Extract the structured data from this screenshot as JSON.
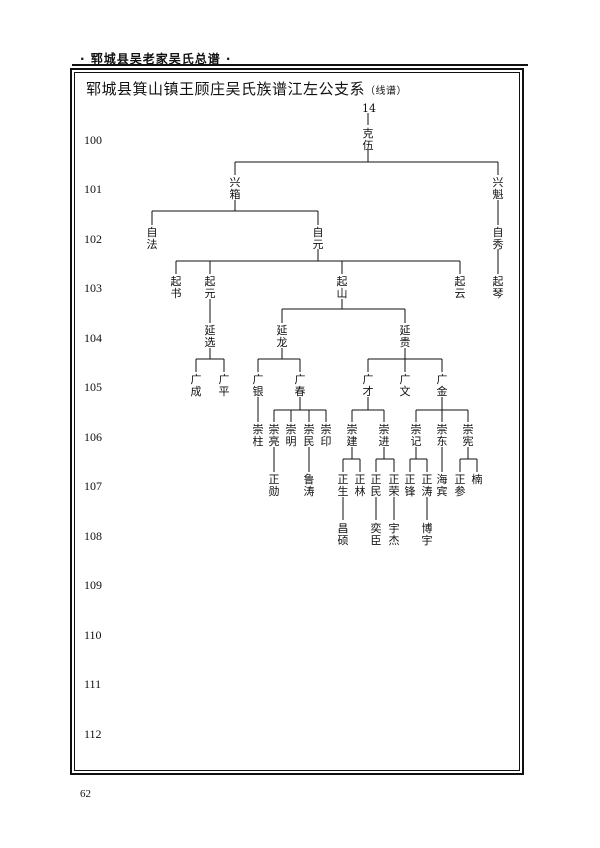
{
  "header": {
    "title": "· 郓城县吴老家吴氏总谱 ·"
  },
  "diagram": {
    "title": "郓城县箕山镇王顾庄吴氏族谱江左公支系",
    "subtitle": "（线谱）",
    "top_marker": "14"
  },
  "generations": [
    "100",
    "101",
    "102",
    "103",
    "104",
    "105",
    "106",
    "107",
    "108",
    "109",
    "110",
    "111",
    "112"
  ],
  "people": {
    "p100": "克伍",
    "p101a": "兴箱",
    "p101b": "兴魁",
    "p102a": "自法",
    "p102b": "自元",
    "p102c": "自秀",
    "p103a": "起书",
    "p103b": "起元",
    "p103c": "起山",
    "p103d": "起云",
    "p103e": "起琴",
    "p104a": "延选",
    "p104b": "延龙",
    "p104c": "延贵",
    "p105a": "广成",
    "p105b": "广平",
    "p105c": "广银",
    "p105d": "广春",
    "p105e": "广才",
    "p105f": "广文",
    "p105g": "广金",
    "p106a": "崇柱",
    "p106b": "崇亮",
    "p106c": "崇明",
    "p106d": "崇民",
    "p106e": "崇印",
    "p106f": "崇建",
    "p106g": "崇进",
    "p106h": "崇记",
    "p106i": "崇东",
    "p106j": "崇宪",
    "p107a": "正勋",
    "p107b": "鲁涛",
    "p107c": "正生",
    "p107d": "正林",
    "p107e": "正民",
    "p107f": "正荣",
    "p107g": "正锋",
    "p107h": "正涛",
    "p107i": "海宾",
    "p107j": "正参",
    "p107k": "楠",
    "p108a": "昌硕",
    "p108b": "奕臣",
    "p108c": "宇杰",
    "p108d": "博宇"
  },
  "footer": {
    "page_number": "62"
  }
}
